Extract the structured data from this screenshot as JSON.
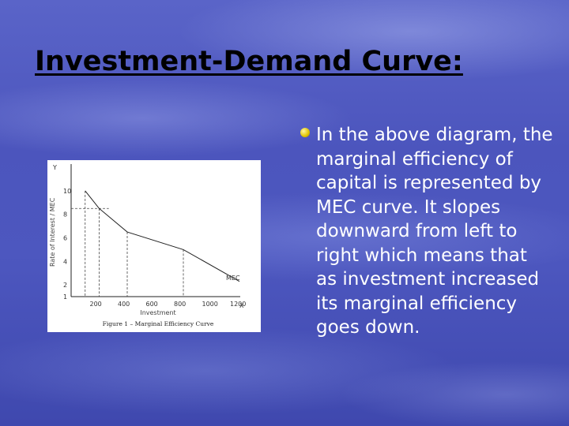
{
  "slide": {
    "title": "Investment-Demand Curve:",
    "bullet": "In the above diagram, the marginal efficiency of capital is represented by MEC curve.  It slopes downward from left to right which means that as investment increased its marginal efficiency goes down."
  },
  "figure": {
    "y_axis_letter": "Y",
    "x_axis_letter": "X",
    "y_axis_label": "Rate of Interest / MEC",
    "x_axis_label": "Investment",
    "caption": "Figure 1 – Marginal Efficiency Curve",
    "curve_label": "MEC",
    "y_ticks": [
      "10",
      "8",
      "6",
      "4",
      "2",
      "1"
    ],
    "x_ticks": [
      "200",
      "400",
      "600",
      "800",
      "1000",
      "1200"
    ],
    "curve_points": [
      [
        100,
        10
      ],
      [
        200,
        8.5
      ],
      [
        400,
        6.5
      ],
      [
        800,
        5
      ],
      [
        1200,
        2.3
      ]
    ]
  }
}
